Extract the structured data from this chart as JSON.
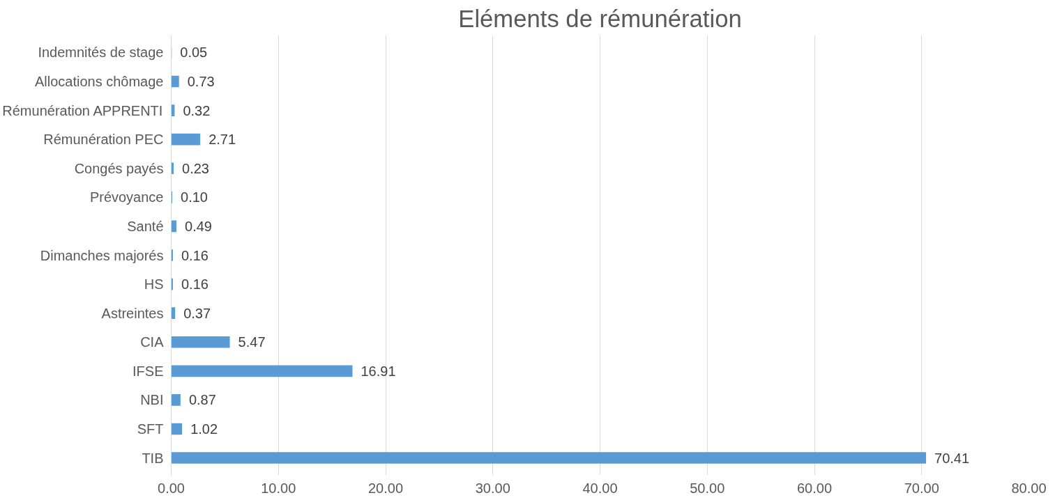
{
  "chart_data": {
    "type": "bar",
    "orientation": "horizontal",
    "title": "Eléments de rémunération",
    "categories": [
      "Indemnités de stage",
      "Allocations chômage",
      "Rémunération APPRENTI",
      "Rémunération PEC",
      "Congés payés",
      "Prévoyance",
      "Santé",
      "Dimanches majorés",
      "HS",
      "Astreintes",
      "CIA",
      "IFSE",
      "NBI",
      "SFT",
      "TIB"
    ],
    "values": [
      0.05,
      0.73,
      0.32,
      2.71,
      0.23,
      0.1,
      0.49,
      0.16,
      0.16,
      0.37,
      5.47,
      16.91,
      0.87,
      1.02,
      70.41
    ],
    "value_labels": [
      "0.05",
      "0.73",
      "0.32",
      "2.71",
      "0.23",
      "0.10",
      "0.49",
      "0.16",
      "0.16",
      "0.37",
      "5.47",
      "16.91",
      "0.87",
      "1.02",
      "70.41"
    ],
    "color": "#5b9bd5",
    "xlim": [
      0,
      80
    ],
    "xticks": [
      {
        "value": 0,
        "label": "0.00"
      },
      {
        "value": 10,
        "label": "10.00"
      },
      {
        "value": 20,
        "label": "20.00"
      },
      {
        "value": 30,
        "label": "30.00"
      },
      {
        "value": 40,
        "label": "40.00"
      },
      {
        "value": 50,
        "label": "50.00"
      },
      {
        "value": 60,
        "label": "60.00"
      },
      {
        "value": 70,
        "label": "70.00"
      },
      {
        "value": 80,
        "label": "80.00"
      }
    ],
    "grid": "x"
  }
}
